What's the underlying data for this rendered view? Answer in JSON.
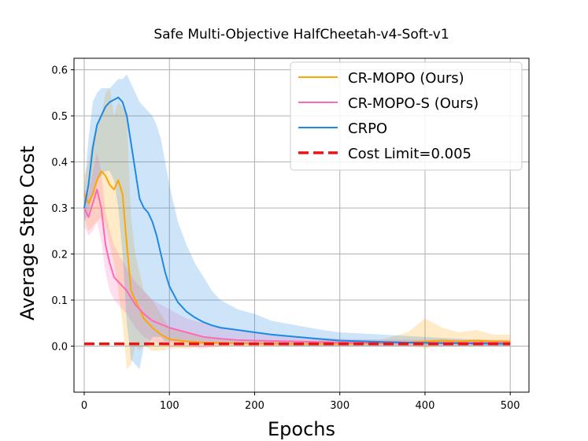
{
  "chart_data": {
    "type": "line",
    "title": "Safe Multi-Objective HalfCheetah-v4-Soft-v1",
    "xlabel": "Epochs",
    "ylabel": "Average Step Cost",
    "xlim": [
      -12,
      522
    ],
    "ylim": [
      -0.1,
      0.625
    ],
    "xticks": [
      0,
      100,
      200,
      300,
      400,
      500
    ],
    "xtick_labels": [
      "0",
      "100",
      "200",
      "300",
      "400",
      "500"
    ],
    "yticks": [
      0.0,
      0.1,
      0.2,
      0.3,
      0.4,
      0.5,
      0.6
    ],
    "ytick_labels": [
      "0.0",
      "0.1",
      "0.2",
      "0.3",
      "0.4",
      "0.5",
      "0.6"
    ],
    "grid": true,
    "legend_position": "top-right",
    "series": [
      {
        "name": "CR-MOPO (Ours)",
        "color": "#FFA500",
        "x": [
          0,
          5,
          10,
          15,
          20,
          25,
          30,
          35,
          40,
          45,
          50,
          55,
          60,
          65,
          70,
          80,
          90,
          100,
          120,
          140,
          160,
          180,
          200,
          250,
          300,
          350,
          380,
          400,
          420,
          440,
          460,
          480,
          500
        ],
        "mean": [
          0.33,
          0.31,
          0.33,
          0.36,
          0.38,
          0.37,
          0.35,
          0.34,
          0.36,
          0.33,
          0.22,
          0.12,
          0.1,
          0.08,
          0.06,
          0.04,
          0.025,
          0.015,
          0.01,
          0.008,
          0.007,
          0.006,
          0.006,
          0.005,
          0.005,
          0.006,
          0.008,
          0.01,
          0.012,
          0.01,
          0.012,
          0.01,
          0.01
        ],
        "lower": [
          0.28,
          0.25,
          0.26,
          0.27,
          0.28,
          0.26,
          0.22,
          0.18,
          0.12,
          0.05,
          -0.05,
          -0.04,
          0.0,
          -0.01,
          0.0,
          -0.01,
          -0.01,
          -0.005,
          -0.005,
          -0.002,
          -0.001,
          0.0,
          0.0,
          0.0,
          0.0,
          0.0,
          0.0,
          -0.005,
          0.0,
          -0.002,
          0.0,
          0.0,
          0.0
        ],
        "upper": [
          0.37,
          0.4,
          0.45,
          0.48,
          0.5,
          0.55,
          0.56,
          0.5,
          0.53,
          0.52,
          0.5,
          0.28,
          0.2,
          0.16,
          0.12,
          0.1,
          0.07,
          0.04,
          0.03,
          0.02,
          0.018,
          0.014,
          0.013,
          0.012,
          0.012,
          0.015,
          0.03,
          0.06,
          0.04,
          0.03,
          0.035,
          0.025,
          0.025
        ]
      },
      {
        "name": "CR-MOPO-S (Ours)",
        "color": "#FF69B4",
        "x": [
          0,
          5,
          10,
          15,
          20,
          25,
          30,
          35,
          40,
          50,
          60,
          70,
          80,
          100,
          120,
          140,
          160,
          180,
          200,
          250,
          300,
          350,
          400,
          450,
          500
        ],
        "mean": [
          0.3,
          0.28,
          0.31,
          0.34,
          0.3,
          0.22,
          0.18,
          0.15,
          0.14,
          0.12,
          0.09,
          0.07,
          0.055,
          0.04,
          0.03,
          0.02,
          0.016,
          0.013,
          0.012,
          0.01,
          0.008,
          0.007,
          0.007,
          0.007,
          0.007
        ],
        "lower": [
          0.26,
          0.24,
          0.25,
          0.27,
          0.23,
          0.16,
          0.12,
          0.1,
          0.09,
          0.07,
          0.04,
          0.02,
          0.01,
          0.0,
          0.0,
          -0.005,
          0.0,
          0.0,
          0.0,
          0.0,
          0.0,
          0.0,
          0.0,
          0.0,
          0.0
        ],
        "upper": [
          0.34,
          0.33,
          0.38,
          0.42,
          0.38,
          0.29,
          0.25,
          0.22,
          0.2,
          0.17,
          0.14,
          0.12,
          0.1,
          0.08,
          0.06,
          0.05,
          0.04,
          0.035,
          0.03,
          0.02,
          0.016,
          0.014,
          0.014,
          0.014,
          0.014
        ]
      },
      {
        "name": "CRPO",
        "color": "#1E88E5",
        "x": [
          0,
          5,
          10,
          15,
          20,
          25,
          30,
          35,
          40,
          45,
          50,
          55,
          60,
          65,
          70,
          75,
          80,
          85,
          90,
          95,
          100,
          110,
          120,
          130,
          140,
          150,
          160,
          180,
          200,
          220,
          250,
          280,
          300,
          350,
          400,
          450,
          500
        ],
        "mean": [
          0.3,
          0.35,
          0.43,
          0.48,
          0.5,
          0.52,
          0.53,
          0.535,
          0.54,
          0.53,
          0.5,
          0.44,
          0.38,
          0.32,
          0.3,
          0.29,
          0.27,
          0.24,
          0.2,
          0.16,
          0.13,
          0.095,
          0.075,
          0.062,
          0.052,
          0.045,
          0.04,
          0.035,
          0.03,
          0.025,
          0.02,
          0.015,
          0.012,
          0.009,
          0.007,
          0.006,
          0.005
        ],
        "lower": [
          0.27,
          0.29,
          0.33,
          0.36,
          0.37,
          0.38,
          0.38,
          0.36,
          0.3,
          0.2,
          0.05,
          -0.03,
          -0.04,
          -0.05,
          0.0,
          0.0,
          0.02,
          0.02,
          0.02,
          0.01,
          0.01,
          0.01,
          0.01,
          0.005,
          0.005,
          0.005,
          0.005,
          0.005,
          0.003,
          0.002,
          0.0,
          0.0,
          0.0,
          0.0,
          0.0,
          0.0,
          0.0
        ],
        "upper": [
          0.34,
          0.45,
          0.53,
          0.55,
          0.56,
          0.56,
          0.56,
          0.57,
          0.58,
          0.58,
          0.59,
          0.57,
          0.55,
          0.53,
          0.52,
          0.51,
          0.5,
          0.48,
          0.45,
          0.4,
          0.35,
          0.27,
          0.22,
          0.18,
          0.15,
          0.12,
          0.1,
          0.08,
          0.07,
          0.055,
          0.045,
          0.035,
          0.03,
          0.025,
          0.02,
          0.015,
          0.012
        ]
      }
    ],
    "reference_line": {
      "name": "Cost Limit=0.005",
      "y": 0.005,
      "x_range": [
        0,
        500
      ],
      "color": "#E81416",
      "style": "dashed"
    }
  }
}
